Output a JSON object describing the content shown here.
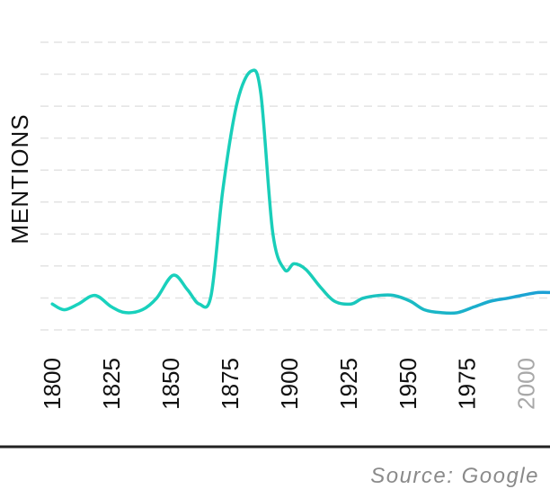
{
  "chart_data": {
    "type": "line",
    "title": "",
    "xlabel": "",
    "ylabel": "MENTIONS",
    "xlim": [
      1795,
      2010
    ],
    "ylim": [
      0,
      10
    ],
    "grid": true,
    "x_ticks": [
      "1800",
      "1825",
      "1850",
      "1875",
      "1900",
      "1925",
      "1950",
      "1975",
      "2000"
    ],
    "series": [
      {
        "x": [
          1800,
          1805,
          1811,
          1818,
          1825,
          1831,
          1838,
          1844,
          1851,
          1857,
          1862,
          1867,
          1872,
          1878,
          1884,
          1888,
          1893,
          1898,
          1902,
          1907,
          1913,
          1919,
          1926,
          1931,
          1938,
          1944,
          1951,
          1957,
          1964,
          1971,
          1978,
          1985,
          1992,
          1998,
          2005,
          2010
        ],
        "values": [
          0.9,
          0.7,
          0.9,
          1.2,
          0.8,
          0.6,
          0.7,
          1.1,
          1.9,
          1.4,
          0.9,
          1.2,
          4.9,
          7.9,
          9.0,
          8.2,
          3.4,
          2.1,
          2.3,
          2.1,
          1.5,
          1.0,
          0.9,
          1.1,
          1.2,
          1.2,
          1.0,
          0.7,
          0.6,
          0.6,
          0.8,
          1.0,
          1.1,
          1.2,
          1.3,
          1.3
        ]
      }
    ],
    "colors": {
      "line_start": "#19d3bf",
      "line_end": "#1c9fd6",
      "grid": "#e3e3e3",
      "baseline": "#222222"
    }
  },
  "footer": {
    "source": "Source: Google"
  }
}
